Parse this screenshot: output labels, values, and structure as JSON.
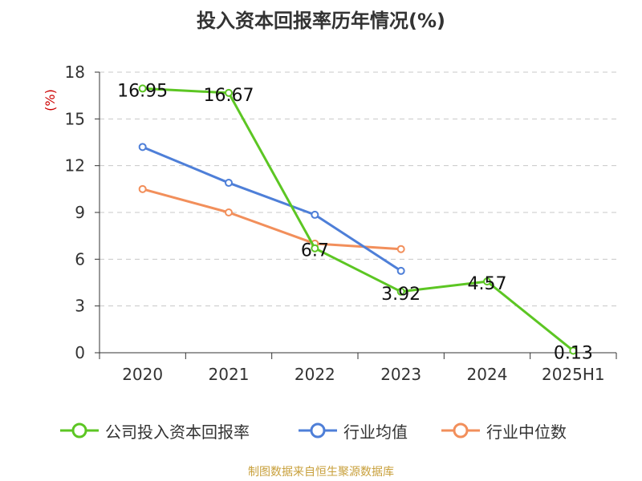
{
  "title": "投入资本回报率历年情况(%)",
  "source": "制图数据来自恒生聚源数据库",
  "chart_data": {
    "type": "line",
    "categories": [
      "2020",
      "2021",
      "2022",
      "2023",
      "2024",
      "2025H1"
    ],
    "ylabel": "(%)",
    "ylim": [
      0,
      18
    ],
    "yticks": [
      0,
      3,
      6,
      9,
      12,
      15,
      18
    ],
    "grid": true,
    "legend_position": "bottom",
    "series": [
      {
        "name": "公司投入资本回报率",
        "color": "#5cc623",
        "values": [
          16.95,
          16.67,
          6.7,
          3.92,
          4.57,
          0.13
        ],
        "labels": [
          "16.95",
          "16.67",
          "6.7",
          "3.92",
          "4.57",
          "0.13"
        ]
      },
      {
        "name": "行业均值",
        "color": "#4e7fd8",
        "values": [
          13.2,
          10.9,
          8.85,
          5.25,
          null,
          null
        ]
      },
      {
        "name": "行业中位数",
        "color": "#f28f5b",
        "values": [
          10.5,
          9.0,
          7.0,
          6.65,
          null,
          null
        ]
      }
    ]
  }
}
